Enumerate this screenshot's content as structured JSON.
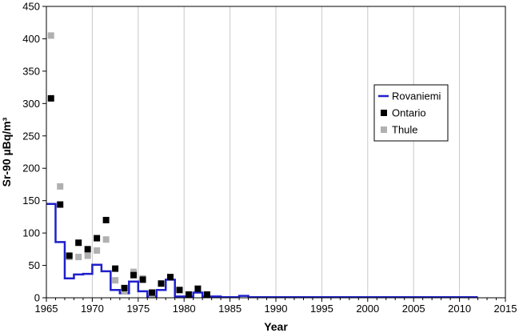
{
  "chart_data": {
    "type": "scatter",
    "xlabel": "Year",
    "ylabel": "Sr-90 µBq/m³",
    "xlim": [
      1965,
      2015
    ],
    "ylim": [
      0,
      450
    ],
    "x_ticks": [
      1965,
      1970,
      1975,
      1980,
      1985,
      1990,
      1995,
      2000,
      2005,
      2010,
      2015
    ],
    "y_ticks": [
      0,
      50,
      100,
      150,
      200,
      250,
      300,
      350,
      400,
      450
    ],
    "x_tick_labels": [
      "1965",
      "1970",
      "1975",
      "1980",
      "1985",
      "1990",
      "1995",
      "2000",
      "2005",
      "2010",
      "2015"
    ],
    "y_tick_labels": [
      "0",
      "50",
      "100",
      "150",
      "200",
      "250",
      "300",
      "350",
      "400",
      "450"
    ],
    "grid": "vertical",
    "legend_position": "right",
    "series": [
      {
        "name": "Rovaniemi",
        "style": "step",
        "color": "#1f1fcc",
        "x": [
          1965,
          1966,
          1967,
          1968,
          1969,
          1970,
          1971,
          1972,
          1973,
          1974,
          1975,
          1976,
          1977,
          1978,
          1979,
          1980,
          1981,
          1982,
          1983,
          1984,
          1985,
          1986,
          1987,
          2012
        ],
        "y": [
          145,
          86,
          30,
          36,
          37,
          51,
          41,
          12,
          7,
          25,
          10,
          2,
          12,
          28,
          2,
          2,
          8,
          2,
          2,
          1,
          1,
          3,
          1,
          1
        ]
      },
      {
        "name": "Ontario",
        "style": "marker",
        "color": "#000000",
        "x": [
          1965.5,
          1966.5,
          1967.5,
          1968.5,
          1969.5,
          1970.5,
          1971.5,
          1972.5,
          1973.5,
          1974.5,
          1975.5,
          1976.5,
          1977.5,
          1978.5,
          1979.5,
          1980.5,
          1981.5,
          1982.5
        ],
        "y": [
          308,
          144,
          65,
          85,
          75,
          92,
          120,
          45,
          15,
          35,
          28,
          8,
          22,
          32,
          12,
          5,
          14,
          5
        ]
      },
      {
        "name": "Thule",
        "style": "marker",
        "color": "#b0b0b0",
        "x": [
          1965.5,
          1966.5,
          1967.5,
          1968.5,
          1969.5,
          1970.5,
          1971.5,
          1972.5,
          1973.5,
          1974.5,
          1975.5,
          1976.5
        ],
        "y": [
          405,
          172,
          63,
          63,
          65,
          73,
          90,
          27,
          10,
          40,
          30,
          4
        ]
      }
    ]
  }
}
